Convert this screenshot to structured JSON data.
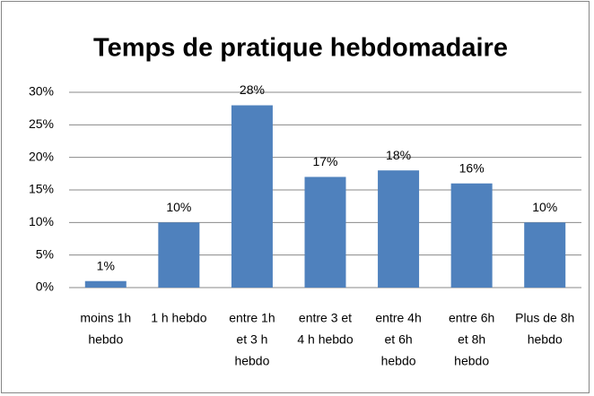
{
  "chart_data": {
    "type": "bar",
    "title": "Temps de pratique hebdomadaire",
    "categories": [
      [
        "moins 1h",
        "hebdo"
      ],
      [
        "1 h hebdo"
      ],
      [
        "entre 1h",
        "et 3 h",
        "hebdo"
      ],
      [
        "entre 3 et",
        "4 h hebdo"
      ],
      [
        "entre 4h",
        "et 6h",
        "hebdo"
      ],
      [
        "entre 6h",
        "et 8h",
        "hebdo"
      ],
      [
        "Plus de 8h",
        "hebdo"
      ]
    ],
    "values": [
      1,
      10,
      28,
      17,
      18,
      16,
      10
    ],
    "value_labels": [
      "1%",
      "10%",
      "28%",
      "17%",
      "18%",
      "16%",
      "10%"
    ],
    "color": "#4f81bd",
    "ylim": [
      0,
      30
    ],
    "yticks": [
      {
        "value": 0,
        "label": "0%"
      },
      {
        "value": 5,
        "label": "5%"
      },
      {
        "value": 10,
        "label": "10%"
      },
      {
        "value": 15,
        "label": "15%"
      },
      {
        "value": 20,
        "label": "20%"
      },
      {
        "value": 25,
        "label": "25%"
      },
      {
        "value": 30,
        "label": "30%"
      }
    ],
    "grid": true
  }
}
